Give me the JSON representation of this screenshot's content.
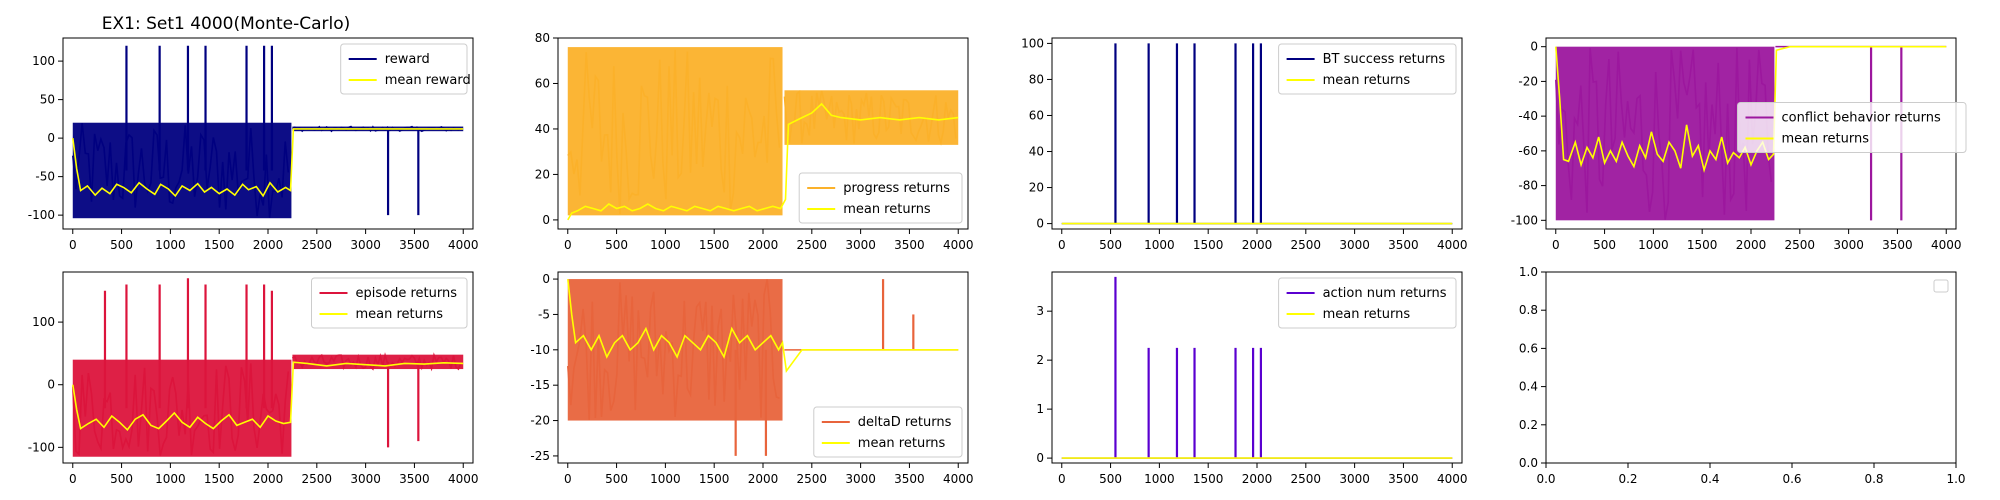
{
  "figure_title": "EX1: Set1 4000(Monte-Carlo)",
  "chart_data": [
    {
      "type": "line",
      "title": "EX1: Set1 4000(Monte-Carlo)",
      "xlim": [
        -100,
        4100
      ],
      "ylim": [
        -118,
        130
      ],
      "xticks": [
        0,
        500,
        1000,
        1500,
        2000,
        2500,
        3000,
        3500,
        4000
      ],
      "yticks": [
        -100,
        -50,
        0,
        50,
        100
      ],
      "legend_position": "top-right",
      "regime_change_x": 2240,
      "series": [
        {
          "name": "reward",
          "color": "#000080",
          "kind": "raw",
          "band1": {
            "x": [
              0,
              2240
            ],
            "range": [
              -104,
              20
            ]
          },
          "band2": {
            "x": [
              2250,
              4000
            ],
            "range": [
              9,
              15
            ]
          },
          "spikes": [
            {
              "x": 550,
              "y": 120
            },
            {
              "x": 890,
              "y": 120
            },
            {
              "x": 1180,
              "y": 120
            },
            {
              "x": 1360,
              "y": 120
            },
            {
              "x": 1780,
              "y": 120
            },
            {
              "x": 1960,
              "y": 120
            },
            {
              "x": 2040,
              "y": 120
            },
            {
              "x": 3230,
              "y": -100
            },
            {
              "x": 3540,
              "y": -100
            }
          ]
        },
        {
          "name": "mean reward",
          "color": "#ffff00",
          "kind": "mean",
          "x": [
            0,
            40,
            80,
            150,
            230,
            300,
            380,
            450,
            520,
            600,
            680,
            760,
            840,
            900,
            980,
            1050,
            1120,
            1200,
            1280,
            1350,
            1420,
            1500,
            1580,
            1660,
            1740,
            1800,
            1880,
            1950,
            2020,
            2100,
            2180,
            2230,
            2260,
            2400,
            2600,
            2800,
            3000,
            3200,
            3400,
            3600,
            3800,
            4000
          ],
          "y": [
            0,
            -40,
            -68,
            -62,
            -74,
            -65,
            -72,
            -60,
            -64,
            -71,
            -58,
            -66,
            -73,
            -60,
            -66,
            -75,
            -62,
            -68,
            -59,
            -70,
            -64,
            -72,
            -66,
            -74,
            -60,
            -67,
            -63,
            -75,
            -58,
            -70,
            -64,
            -68,
            12,
            12,
            12,
            12,
            12,
            12,
            12,
            12,
            12,
            12
          ]
        }
      ]
    },
    {
      "type": "line",
      "xlim": [
        -100,
        4100
      ],
      "ylim": [
        -4,
        80
      ],
      "xticks": [
        0,
        500,
        1000,
        1500,
        2000,
        2500,
        3000,
        3500,
        4000
      ],
      "yticks": [
        0,
        20,
        40,
        60,
        80
      ],
      "legend_position": "bottom-right",
      "regime_change_x": 2240,
      "series": [
        {
          "name": "progress returns",
          "color": "#fbb12a",
          "kind": "raw",
          "band1": {
            "x": [
              0,
              2200
            ],
            "range": [
              2,
              76
            ]
          },
          "band2": {
            "x": [
              2220,
              4000
            ],
            "range": [
              33,
              57
            ]
          },
          "spikes": []
        },
        {
          "name": "mean returns",
          "color": "#ffff00",
          "kind": "mean",
          "x": [
            0,
            40,
            100,
            180,
            260,
            340,
            420,
            500,
            580,
            660,
            740,
            820,
            900,
            980,
            1060,
            1140,
            1220,
            1300,
            1380,
            1460,
            1540,
            1620,
            1700,
            1780,
            1860,
            1940,
            2020,
            2100,
            2180,
            2230,
            2260,
            2400,
            2500,
            2600,
            2700,
            2800,
            3000,
            3200,
            3400,
            3600,
            3800,
            4000
          ],
          "y": [
            0,
            3,
            4,
            6,
            5,
            4,
            7,
            5,
            6,
            4,
            5,
            7,
            5,
            4,
            6,
            5,
            4,
            6,
            5,
            4,
            6,
            5,
            4,
            5,
            6,
            4,
            5,
            6,
            5,
            9,
            42,
            45,
            47,
            51,
            46,
            45,
            44,
            45,
            44,
            45,
            44,
            45
          ]
        }
      ]
    },
    {
      "type": "line",
      "xlim": [
        -100,
        4100
      ],
      "ylim": [
        -3,
        103
      ],
      "xticks": [
        0,
        500,
        1000,
        1500,
        2000,
        2500,
        3000,
        3500,
        4000
      ],
      "yticks": [
        0,
        20,
        40,
        60,
        80,
        100
      ],
      "legend_position": "top-right",
      "series": [
        {
          "name": "BT success returns",
          "color": "#000080",
          "kind": "raw",
          "band1": {
            "x": [
              0,
              4000
            ],
            "range": [
              0,
              0
            ]
          },
          "band2": null,
          "spikes": [
            {
              "x": 550,
              "y": 100
            },
            {
              "x": 890,
              "y": 100
            },
            {
              "x": 1180,
              "y": 100
            },
            {
              "x": 1360,
              "y": 100
            },
            {
              "x": 1780,
              "y": 100
            },
            {
              "x": 1960,
              "y": 100
            },
            {
              "x": 2040,
              "y": 100
            }
          ]
        },
        {
          "name": "mean returns",
          "color": "#ffff00",
          "kind": "mean",
          "x": [
            0,
            500,
            1000,
            1500,
            2000,
            2500,
            3000,
            3500,
            4000
          ],
          "y": [
            0,
            0,
            0,
            0,
            0,
            0,
            0,
            0,
            0
          ]
        }
      ]
    },
    {
      "type": "line",
      "xlim": [
        -100,
        4100
      ],
      "ylim": [
        -105,
        5
      ],
      "xticks": [
        0,
        500,
        1000,
        1500,
        2000,
        2500,
        3000,
        3500,
        4000
      ],
      "yticks": [
        -100,
        -80,
        -60,
        -40,
        -20,
        0
      ],
      "legend_position": "right",
      "regime_change_x": 2240,
      "series": [
        {
          "name": "conflict behavior returns",
          "color": "#9c179e",
          "kind": "raw",
          "band1": {
            "x": [
              0,
              2240
            ],
            "range": [
              -100,
              0
            ]
          },
          "band2": {
            "x": [
              2250,
              4000
            ],
            "range": [
              0,
              0
            ]
          },
          "spikes": [
            {
              "x": 3230,
              "y": -100
            },
            {
              "x": 3540,
              "y": -100
            }
          ]
        },
        {
          "name": "mean returns",
          "color": "#ffff00",
          "kind": "mean",
          "x": [
            0,
            40,
            80,
            130,
            200,
            260,
            320,
            380,
            440,
            500,
            560,
            620,
            680,
            740,
            800,
            860,
            920,
            980,
            1040,
            1100,
            1160,
            1220,
            1280,
            1340,
            1400,
            1460,
            1520,
            1580,
            1640,
            1700,
            1760,
            1820,
            1880,
            1940,
            2000,
            2060,
            2120,
            2180,
            2230,
            2260,
            2400,
            2600,
            2800,
            3000,
            3200,
            3400,
            3600,
            3800,
            4000
          ],
          "y": [
            0,
            -30,
            -65,
            -66,
            -55,
            -68,
            -58,
            -64,
            -52,
            -67,
            -60,
            -66,
            -55,
            -63,
            -69,
            -57,
            -64,
            -49,
            -62,
            -66,
            -55,
            -60,
            -70,
            -45,
            -63,
            -57,
            -71,
            -60,
            -65,
            -52,
            -67,
            -61,
            -64,
            -58,
            -68,
            -60,
            -55,
            -65,
            -62,
            -2,
            0,
            0,
            0,
            0,
            0,
            0,
            0,
            0,
            0
          ]
        }
      ]
    },
    {
      "type": "line",
      "xlim": [
        -100,
        4100
      ],
      "ylim": [
        -125,
        180
      ],
      "xticks": [
        0,
        500,
        1000,
        1500,
        2000,
        2500,
        3000,
        3500,
        4000
      ],
      "yticks": [
        -100,
        0,
        100
      ],
      "legend_position": "top-right",
      "regime_change_x": 2240,
      "series": [
        {
          "name": "episode returns",
          "color": "#dc143c",
          "kind": "raw",
          "band1": {
            "x": [
              0,
              2240
            ],
            "range": [
              -115,
              40
            ]
          },
          "band2": {
            "x": [
              2250,
              4000
            ],
            "range": [
              25,
              48
            ]
          },
          "spikes": [
            {
              "x": 330,
              "y": 150
            },
            {
              "x": 550,
              "y": 160
            },
            {
              "x": 890,
              "y": 160
            },
            {
              "x": 1180,
              "y": 170
            },
            {
              "x": 1360,
              "y": 160
            },
            {
              "x": 1780,
              "y": 160
            },
            {
              "x": 1960,
              "y": 160
            },
            {
              "x": 2040,
              "y": 150
            },
            {
              "x": 3230,
              "y": -100
            },
            {
              "x": 3540,
              "y": -90
            }
          ]
        },
        {
          "name": "mean returns",
          "color": "#ffff00",
          "kind": "mean",
          "x": [
            0,
            40,
            80,
            160,
            240,
            320,
            400,
            480,
            560,
            640,
            720,
            800,
            880,
            960,
            1040,
            1120,
            1200,
            1280,
            1360,
            1440,
            1520,
            1600,
            1680,
            1760,
            1840,
            1920,
            2000,
            2080,
            2160,
            2230,
            2260,
            2400,
            2600,
            2800,
            3000,
            3200,
            3400,
            3600,
            3800,
            4000
          ],
          "y": [
            0,
            -40,
            -70,
            -62,
            -55,
            -68,
            -50,
            -60,
            -72,
            -55,
            -48,
            -65,
            -70,
            -58,
            -45,
            -60,
            -68,
            -52,
            -62,
            -70,
            -58,
            -48,
            -65,
            -60,
            -55,
            -68,
            -50,
            -58,
            -62,
            -60,
            36,
            34,
            30,
            34,
            32,
            30,
            34,
            33,
            35,
            34
          ]
        }
      ]
    },
    {
      "type": "line",
      "xlim": [
        -100,
        4100
      ],
      "ylim": [
        -26,
        1
      ],
      "xticks": [
        0,
        500,
        1000,
        1500,
        2000,
        2500,
        3000,
        3500,
        4000
      ],
      "yticks": [
        -25,
        -20,
        -15,
        -10,
        -5,
        0
      ],
      "legend_position": "bottom-right",
      "regime_change_x": 2240,
      "series": [
        {
          "name": "deltaD returns",
          "color": "#e8643c",
          "kind": "raw",
          "band1": {
            "x": [
              0,
              2200
            ],
            "range": [
              -20,
              0
            ]
          },
          "band2": {
            "x": [
              2220,
              4000
            ],
            "range": [
              -10,
              -10
            ]
          },
          "spikes": [
            {
              "x": 1720,
              "y": -25
            },
            {
              "x": 2030,
              "y": -25
            },
            {
              "x": 3230,
              "y": 0
            },
            {
              "x": 3540,
              "y": -5
            }
          ]
        },
        {
          "name": "mean returns",
          "color": "#ffff00",
          "kind": "mean",
          "x": [
            0,
            40,
            80,
            160,
            240,
            320,
            400,
            480,
            560,
            640,
            720,
            800,
            880,
            960,
            1040,
            1120,
            1200,
            1280,
            1360,
            1440,
            1520,
            1600,
            1680,
            1760,
            1840,
            1920,
            2000,
            2080,
            2160,
            2200,
            2240,
            2400,
            2600,
            2800,
            3000,
            3200,
            3400,
            3600,
            3800,
            4000
          ],
          "y": [
            0,
            -5,
            -9,
            -8,
            -10,
            -8,
            -11,
            -9,
            -8,
            -10,
            -9,
            -7,
            -10,
            -8,
            -9,
            -11,
            -8,
            -9,
            -10,
            -8,
            -9,
            -11,
            -7,
            -9,
            -8,
            -10,
            -9,
            -8,
            -10,
            -9,
            -13,
            -10,
            -10,
            -10,
            -10,
            -10,
            -10,
            -10,
            -10,
            -10
          ]
        }
      ]
    },
    {
      "type": "line",
      "xlim": [
        -100,
        4100
      ],
      "ylim": [
        -0.1,
        3.8
      ],
      "xticks": [
        0,
        500,
        1000,
        1500,
        2000,
        2500,
        3000,
        3500,
        4000
      ],
      "yticks": [
        0,
        1,
        2,
        3
      ],
      "legend_position": "top-right",
      "series": [
        {
          "name": "action num returns",
          "color": "#5a00d0",
          "kind": "raw",
          "band1": {
            "x": [
              0,
              4000
            ],
            "range": [
              0,
              0
            ]
          },
          "band2": null,
          "spikes": [
            {
              "x": 550,
              "y": 3.7
            },
            {
              "x": 890,
              "y": 2.25
            },
            {
              "x": 1180,
              "y": 2.25
            },
            {
              "x": 1360,
              "y": 2.25
            },
            {
              "x": 1780,
              "y": 2.25
            },
            {
              "x": 1960,
              "y": 2.25
            },
            {
              "x": 2040,
              "y": 2.25
            }
          ]
        },
        {
          "name": "mean returns",
          "color": "#ffff00",
          "kind": "mean",
          "x": [
            0,
            500,
            1000,
            1500,
            2000,
            2500,
            3000,
            3500,
            4000
          ],
          "y": [
            0,
            0,
            0,
            0,
            0,
            0,
            0,
            0,
            0
          ]
        }
      ]
    },
    {
      "type": "line",
      "xlim": [
        0,
        1
      ],
      "ylim": [
        0,
        1
      ],
      "xticks": [
        0.0,
        0.2,
        0.4,
        0.6,
        0.8,
        1.0
      ],
      "yticks": [
        0.0,
        0.2,
        0.4,
        0.6,
        0.8,
        1.0
      ],
      "tick_format": "1dp",
      "legend_position": "top-right",
      "empty_legend": true,
      "series": []
    }
  ]
}
